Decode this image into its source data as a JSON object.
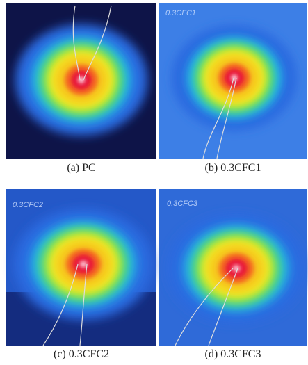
{
  "panels": [
    {
      "caption": "(a) PC"
    },
    {
      "caption": "(b) 0.3CFC1",
      "sample_label": "0.3CFC1"
    },
    {
      "caption": "(c) 0.3CFC2",
      "sample_label": "0.3CFC2"
    },
    {
      "caption": "(d) 0.3CFC3",
      "sample_label": "0.3CFC3"
    }
  ]
}
